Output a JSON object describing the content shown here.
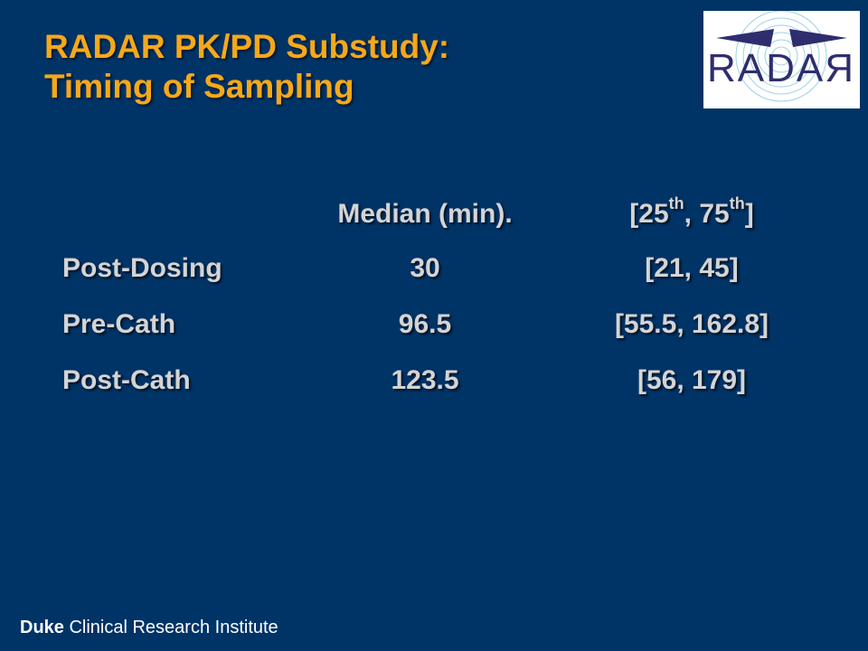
{
  "slide": {
    "title_line1": "RADAR PK/PD Substudy:",
    "title_line2": "Timing of Sampling"
  },
  "logo": {
    "text": "RADAЯ"
  },
  "table": {
    "header_median": "Median (min).",
    "header_range_open": "[25",
    "header_range_sup1": "th",
    "header_range_mid": ", 75",
    "header_range_sup2": "th",
    "header_range_close": "]",
    "rows": [
      {
        "label": "Post-Dosing",
        "median": "30",
        "range": "[21, 45]"
      },
      {
        "label": "Pre-Cath",
        "median": "96.5",
        "range": "[55.5, 162.8]"
      },
      {
        "label": "Post-Cath",
        "median": "123.5",
        "range": "[56, 179]"
      }
    ]
  },
  "footer": {
    "bold": "Duke",
    "rest": "Clinical Research Institute"
  },
  "colors": {
    "background": "#003366",
    "title": "#F6A81A",
    "body_text": "#D4D4D4",
    "logo_purple": "#2E2E6E",
    "logo_rings": "#8CC8E0"
  }
}
